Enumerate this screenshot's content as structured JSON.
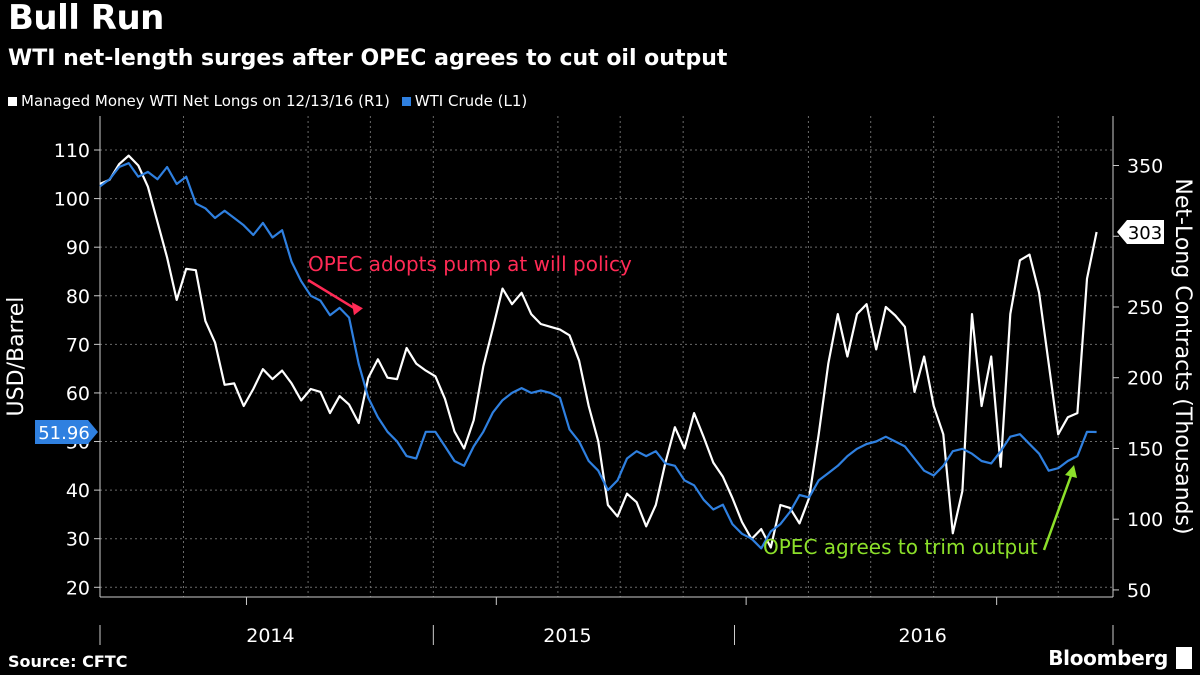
{
  "header": {
    "title": "Bull Run",
    "subtitle": "WTI net-length surges after OPEC agrees to cut oil output"
  },
  "footer": {
    "source": "Source: CFTC",
    "brand": "Bloomberg"
  },
  "colors": {
    "background": "#000000",
    "net_longs": "#ffffff",
    "wti": "#2f80e0",
    "annotation_red": "#ff2a55",
    "annotation_green": "#8ce02a"
  },
  "chart_data": {
    "type": "line",
    "title": "Bull Run",
    "subtitle": "WTI net-length surges after OPEC agrees to cut oil output",
    "legend_position": "top-left",
    "grid": true,
    "x_ticks": [
      "2014",
      "2015",
      "2016"
    ],
    "left_axis": {
      "label": "USD/Barrel",
      "range": [
        18,
        117
      ],
      "ticks": [
        20,
        30,
        40,
        50,
        60,
        70,
        80,
        90,
        100,
        110
      ]
    },
    "right_axis": {
      "label": "Net-Long Contracts (Thousands)",
      "range": [
        45,
        385
      ],
      "ticks": [
        50,
        100,
        150,
        200,
        250,
        300,
        350
      ]
    },
    "series": [
      {
        "name": "Managed Money WTI Net Longs on 12/13/16 (R1)",
        "axis": "right",
        "color": "#ffffff",
        "last_value_label": "303",
        "points": [
          [
            "2013-06-01",
            337
          ],
          [
            "2013-06-15",
            340
          ],
          [
            "2013-06-29",
            351
          ],
          [
            "2013-07-13",
            357
          ],
          [
            "2013-07-27",
            350
          ],
          [
            "2013-08-10",
            335
          ],
          [
            "2013-08-24",
            310
          ],
          [
            "2013-09-07",
            285
          ],
          [
            "2013-09-21",
            255
          ],
          [
            "2013-10-05",
            277
          ],
          [
            "2013-10-19",
            276
          ],
          [
            "2013-11-02",
            240
          ],
          [
            "2013-11-16",
            225
          ],
          [
            "2013-11-30",
            195
          ],
          [
            "2013-12-14",
            196
          ],
          [
            "2013-12-28",
            180
          ],
          [
            "2014-01-11",
            192
          ],
          [
            "2014-01-25",
            206
          ],
          [
            "2014-02-08",
            199
          ],
          [
            "2014-02-22",
            205
          ],
          [
            "2014-03-08",
            196
          ],
          [
            "2014-03-22",
            184
          ],
          [
            "2014-04-05",
            192
          ],
          [
            "2014-04-19",
            190
          ],
          [
            "2014-05-03",
            175
          ],
          [
            "2014-05-17",
            187
          ],
          [
            "2014-05-31",
            181
          ],
          [
            "2014-06-14",
            168
          ],
          [
            "2014-06-28",
            200
          ],
          [
            "2014-07-12",
            213
          ],
          [
            "2014-07-26",
            200
          ],
          [
            "2014-08-09",
            199
          ],
          [
            "2014-08-23",
            221
          ],
          [
            "2014-09-06",
            210
          ],
          [
            "2014-09-20",
            205
          ],
          [
            "2014-10-04",
            201
          ],
          [
            "2014-10-18",
            185
          ],
          [
            "2014-11-01",
            162
          ],
          [
            "2014-11-15",
            150
          ],
          [
            "2014-11-29",
            170
          ],
          [
            "2014-12-13",
            208
          ],
          [
            "2014-12-27",
            235
          ],
          [
            "2015-01-10",
            263
          ],
          [
            "2015-01-24",
            252
          ],
          [
            "2015-02-07",
            260
          ],
          [
            "2015-02-21",
            245
          ],
          [
            "2015-03-07",
            238
          ],
          [
            "2015-03-21",
            236
          ],
          [
            "2015-04-04",
            234
          ],
          [
            "2015-04-18",
            230
          ],
          [
            "2015-05-02",
            212
          ],
          [
            "2015-05-16",
            180
          ],
          [
            "2015-05-30",
            155
          ],
          [
            "2015-06-13",
            110
          ],
          [
            "2015-06-27",
            102
          ],
          [
            "2015-07-11",
            118
          ],
          [
            "2015-07-25",
            112
          ],
          [
            "2015-08-08",
            95
          ],
          [
            "2015-08-22",
            110
          ],
          [
            "2015-09-05",
            140
          ],
          [
            "2015-09-19",
            165
          ],
          [
            "2015-10-03",
            150
          ],
          [
            "2015-10-17",
            175
          ],
          [
            "2015-10-31",
            158
          ],
          [
            "2015-11-14",
            140
          ],
          [
            "2015-11-28",
            130
          ],
          [
            "2015-12-12",
            115
          ],
          [
            "2015-12-26",
            98
          ],
          [
            "2016-01-09",
            86
          ],
          [
            "2016-01-23",
            93
          ],
          [
            "2016-02-06",
            80
          ],
          [
            "2016-02-20",
            110
          ],
          [
            "2016-03-05",
            108
          ],
          [
            "2016-03-19",
            97
          ],
          [
            "2016-04-02",
            115
          ],
          [
            "2016-04-16",
            160
          ],
          [
            "2016-04-30",
            210
          ],
          [
            "2016-05-14",
            245
          ],
          [
            "2016-05-28",
            215
          ],
          [
            "2016-06-11",
            245
          ],
          [
            "2016-06-25",
            252
          ],
          [
            "2016-07-09",
            220
          ],
          [
            "2016-07-23",
            250
          ],
          [
            "2016-08-06",
            244
          ],
          [
            "2016-08-20",
            236
          ],
          [
            "2016-09-03",
            190
          ],
          [
            "2016-09-17",
            215
          ],
          [
            "2016-10-01",
            180
          ],
          [
            "2016-10-15",
            160
          ],
          [
            "2016-10-29",
            90
          ],
          [
            "2016-11-12",
            120
          ],
          [
            "2016-11-26",
            245
          ],
          [
            "2016-12-10",
            180
          ],
          [
            "2016-12-24",
            215
          ],
          [
            "2017-01-07",
            137
          ],
          [
            "2017-01-21",
            245
          ],
          [
            "2017-02-04",
            283
          ],
          [
            "2017-02-18",
            287
          ],
          [
            "2017-03-04",
            260
          ],
          [
            "2017-03-18",
            210
          ],
          [
            "2017-04-01",
            160
          ],
          [
            "2017-04-15",
            172
          ],
          [
            "2017-04-29",
            175
          ],
          [
            "2017-05-13",
            270
          ],
          [
            "2017-05-27",
            303
          ]
        ]
      },
      {
        "name": "WTI Crude (L1)",
        "axis": "left",
        "color": "#2f80e0",
        "last_value_label": "51.96",
        "points": [
          [
            "2013-06-01",
            102.5
          ],
          [
            "2013-06-15",
            104
          ],
          [
            "2013-06-29",
            106.5
          ],
          [
            "2013-07-13",
            107.3
          ],
          [
            "2013-07-27",
            104.5
          ],
          [
            "2013-08-10",
            105.5
          ],
          [
            "2013-08-24",
            104
          ],
          [
            "2013-09-07",
            106.5
          ],
          [
            "2013-09-21",
            103
          ],
          [
            "2013-10-05",
            104.5
          ],
          [
            "2013-10-19",
            99
          ],
          [
            "2013-11-02",
            98
          ],
          [
            "2013-11-16",
            96
          ],
          [
            "2013-11-30",
            97.5
          ],
          [
            "2013-12-14",
            96
          ],
          [
            "2013-12-28",
            94.5
          ],
          [
            "2014-01-11",
            92.5
          ],
          [
            "2014-01-25",
            95
          ],
          [
            "2014-02-08",
            92
          ],
          [
            "2014-02-22",
            93.5
          ],
          [
            "2014-03-08",
            87
          ],
          [
            "2014-03-22",
            83
          ],
          [
            "2014-04-05",
            80
          ],
          [
            "2014-04-19",
            79
          ],
          [
            "2014-05-03",
            76
          ],
          [
            "2014-05-17",
            77.5
          ],
          [
            "2014-05-31",
            75.5
          ],
          [
            "2014-06-14",
            66
          ],
          [
            "2014-06-28",
            59
          ],
          [
            "2014-07-12",
            55
          ],
          [
            "2014-07-26",
            52
          ],
          [
            "2014-08-09",
            50
          ],
          [
            "2014-08-23",
            47
          ],
          [
            "2014-09-06",
            46.5
          ],
          [
            "2014-09-20",
            52
          ],
          [
            "2014-10-04",
            52
          ],
          [
            "2014-10-18",
            49
          ],
          [
            "2014-11-01",
            46
          ],
          [
            "2014-11-15",
            45
          ],
          [
            "2014-11-29",
            49
          ],
          [
            "2014-12-13",
            52
          ],
          [
            "2014-12-27",
            56
          ],
          [
            "2015-01-10",
            58.5
          ],
          [
            "2015-01-24",
            60
          ],
          [
            "2015-02-07",
            61
          ],
          [
            "2015-02-21",
            60
          ],
          [
            "2015-03-07",
            60.5
          ],
          [
            "2015-03-21",
            60
          ],
          [
            "2015-04-04",
            59
          ],
          [
            "2015-04-18",
            52.5
          ],
          [
            "2015-05-02",
            50
          ],
          [
            "2015-05-16",
            46
          ],
          [
            "2015-05-30",
            44
          ],
          [
            "2015-06-13",
            40
          ],
          [
            "2015-06-27",
            42
          ],
          [
            "2015-07-11",
            46.5
          ],
          [
            "2015-07-25",
            48
          ],
          [
            "2015-08-08",
            47
          ],
          [
            "2015-08-22",
            48
          ],
          [
            "2015-09-05",
            45.5
          ],
          [
            "2015-09-19",
            45
          ],
          [
            "2015-10-03",
            42
          ],
          [
            "2015-10-17",
            41
          ],
          [
            "2015-10-31",
            38
          ],
          [
            "2015-11-14",
            36
          ],
          [
            "2015-11-28",
            37
          ],
          [
            "2015-12-12",
            33
          ],
          [
            "2015-12-26",
            31
          ],
          [
            "2016-01-09",
            30
          ],
          [
            "2016-01-23",
            28
          ],
          [
            "2016-02-06",
            31.5
          ],
          [
            "2016-02-20",
            33
          ],
          [
            "2016-03-05",
            35.5
          ],
          [
            "2016-03-19",
            39
          ],
          [
            "2016-04-02",
            38.5
          ],
          [
            "2016-04-16",
            42
          ],
          [
            "2016-04-30",
            43.5
          ],
          [
            "2016-05-14",
            45
          ],
          [
            "2016-05-28",
            47
          ],
          [
            "2016-06-11",
            48.5
          ],
          [
            "2016-06-25",
            49.5
          ],
          [
            "2016-07-09",
            50
          ],
          [
            "2016-07-23",
            51
          ],
          [
            "2016-08-06",
            50
          ],
          [
            "2016-08-20",
            49
          ],
          [
            "2016-09-03",
            46.5
          ],
          [
            "2016-09-17",
            44
          ],
          [
            "2016-10-01",
            43
          ],
          [
            "2016-10-15",
            45
          ],
          [
            "2016-10-29",
            48
          ],
          [
            "2016-11-12",
            48.5
          ],
          [
            "2016-11-26",
            47.5
          ],
          [
            "2016-12-10",
            46
          ],
          [
            "2016-12-24",
            45.5
          ],
          [
            "2017-01-07",
            48
          ],
          [
            "2017-01-21",
            51
          ],
          [
            "2017-02-04",
            51.5
          ],
          [
            "2017-02-18",
            49.5
          ],
          [
            "2017-03-04",
            47.5
          ],
          [
            "2017-03-18",
            44
          ],
          [
            "2017-04-01",
            44.5
          ],
          [
            "2017-04-15",
            46
          ],
          [
            "2017-04-29",
            47
          ],
          [
            "2017-05-13",
            52
          ],
          [
            "2017-05-27",
            51.96
          ]
        ]
      }
    ],
    "annotations": [
      {
        "text": "OPEC adopts pump at will policy",
        "color": "#ff2a55",
        "date": "2014-06-07",
        "value": 76
      },
      {
        "text": "OPEC agrees to trim output",
        "color": "#8ce02a",
        "date": "2017-05-15",
        "value": 44
      }
    ]
  }
}
